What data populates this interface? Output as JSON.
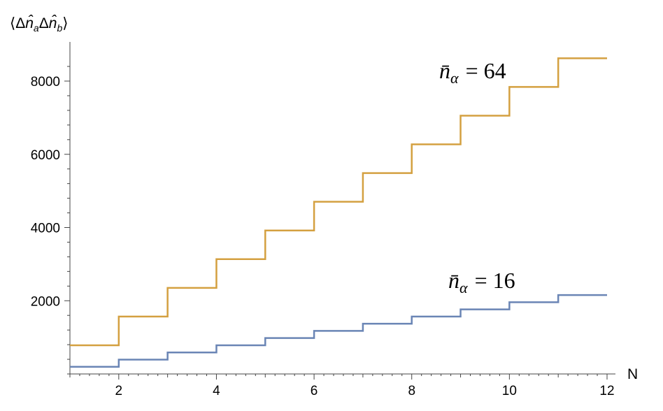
{
  "chart_data": {
    "type": "line",
    "step": true,
    "title": "",
    "xlabel": "N",
    "ylabel": "⟨Δn̂ₐΔn̂_b⟩",
    "ylabel_parts": {
      "open": "⟨Δ",
      "n1": "n̂",
      "sub1": "a",
      "mid": "Δ",
      "n2": "n̂",
      "sub2": "b",
      "close": "⟩"
    },
    "xlim": [
      1,
      12
    ],
    "ylim": [
      0,
      8700
    ],
    "x_ticks": [
      2,
      4,
      6,
      8,
      10,
      12
    ],
    "y_ticks": [
      2000,
      4000,
      6000,
      8000
    ],
    "grid": false,
    "x": [
      1,
      2,
      3,
      4,
      5,
      6,
      7,
      8,
      9,
      10,
      11,
      12
    ],
    "series": [
      {
        "label_parts": {
          "n": "n̄",
          "sub": "α",
          "eq": "= 64"
        },
        "color": "#D4A040",
        "values": [
          784,
          1568,
          2352,
          3136,
          3920,
          4704,
          5488,
          6272,
          7056,
          7840,
          8624,
          8624
        ]
      },
      {
        "label_parts": {
          "n": "n̄",
          "sub": "α",
          "eq": "= 16"
        },
        "color": "#6A85B5",
        "values": [
          196,
          392,
          588,
          784,
          980,
          1176,
          1372,
          1568,
          1764,
          1960,
          2156,
          2156
        ]
      }
    ]
  }
}
